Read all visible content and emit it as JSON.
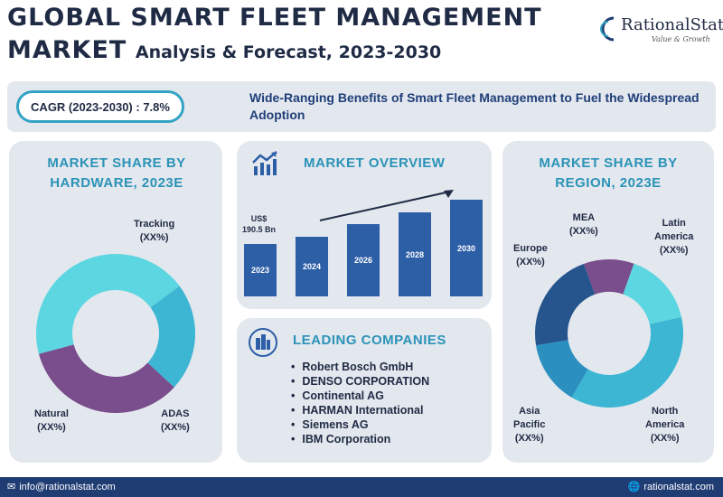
{
  "header": {
    "title_line1": "GLOBAL SMART FLEET MANAGEMENT",
    "title_line2_big": "MARKET",
    "title_line2_small": "Analysis & Forecast, 2023-2030"
  },
  "logo": {
    "name": "RationalStat",
    "tagline": "Value & Growth"
  },
  "banner": {
    "cagr": "CAGR (2023-2030) : 7.8%",
    "headline": "Wide-Ranging Benefits of Smart Fleet Management to Fuel the Widespread Adoption"
  },
  "hardware": {
    "title": "MARKET SHARE BY HARDWARE, 2023E",
    "segments": [
      {
        "name": "Tracking",
        "value": "(XX%)",
        "share": 0.44,
        "color": "#5cd6e0"
      },
      {
        "name": "ADAS",
        "value": "(XX%)",
        "share": 0.22,
        "color": "#3cb6d3"
      },
      {
        "name": "Natural",
        "value": "(XX%)",
        "share": 0.34,
        "color": "#7a4d8c"
      }
    ]
  },
  "overview": {
    "title": "MARKET OVERVIEW",
    "value_currency": "US$",
    "value_amount": "190.5 Bn",
    "bars": [
      {
        "year": "2023",
        "level": 0.5
      },
      {
        "year": "2024",
        "level": 0.57
      },
      {
        "year": "2026",
        "level": 0.69
      },
      {
        "year": "2028",
        "level": 0.8
      },
      {
        "year": "2030",
        "level": 0.92
      }
    ]
  },
  "companies": {
    "title": "LEADING COMPANIES",
    "items": [
      "Robert Bosch GmbH",
      "DENSO CORPORATION",
      "Continental AG",
      "HARMAN International",
      "Siemens AG",
      "IBM Corporation"
    ]
  },
  "region": {
    "title": "MARKET SHARE BY REGION, 2023E",
    "segments": [
      {
        "name": "MEA",
        "value": "(XX%)",
        "share": 0.11,
        "color": "#7a4d8c"
      },
      {
        "name": "Latin America",
        "value": "(XX%)",
        "share": 0.16,
        "color": "#5cd6e0"
      },
      {
        "name": "North America",
        "value": "(XX%)",
        "share": 0.37,
        "color": "#3cb6d3"
      },
      {
        "name": "Asia Pacific",
        "value": "(XX%)",
        "share": 0.14,
        "color": "#2b8fbf"
      },
      {
        "name": "Europe",
        "value": "(XX%)",
        "share": 0.22,
        "color": "#26558e"
      }
    ]
  },
  "footer": {
    "email": "info@rationalstat.com",
    "website": "rationalstat.com"
  }
}
